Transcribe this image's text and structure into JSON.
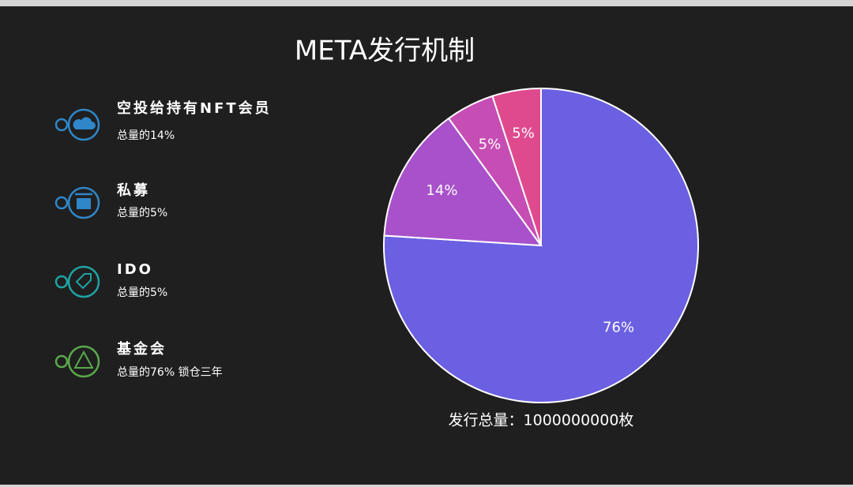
{
  "chart_data": {
    "type": "pie",
    "title": "META发行机制",
    "values": [
      76,
      14,
      5,
      5
    ],
    "value_labels": [
      "76%",
      "14%",
      "5%",
      "5%"
    ],
    "colors": [
      "#6b5fe2",
      "#a851cb",
      "#c64db3",
      "#df4a8e"
    ],
    "note": "发行总量：1000000000枚"
  },
  "legend": [
    {
      "title": "空投给持有NFT会员",
      "note": "总量的14%"
    },
    {
      "title": "私募",
      "note": "总量的5%"
    },
    {
      "title": "IDO",
      "note": "总量的5%"
    },
    {
      "title": "基金会",
      "note": "总量的76% 锁仓三年"
    }
  ]
}
